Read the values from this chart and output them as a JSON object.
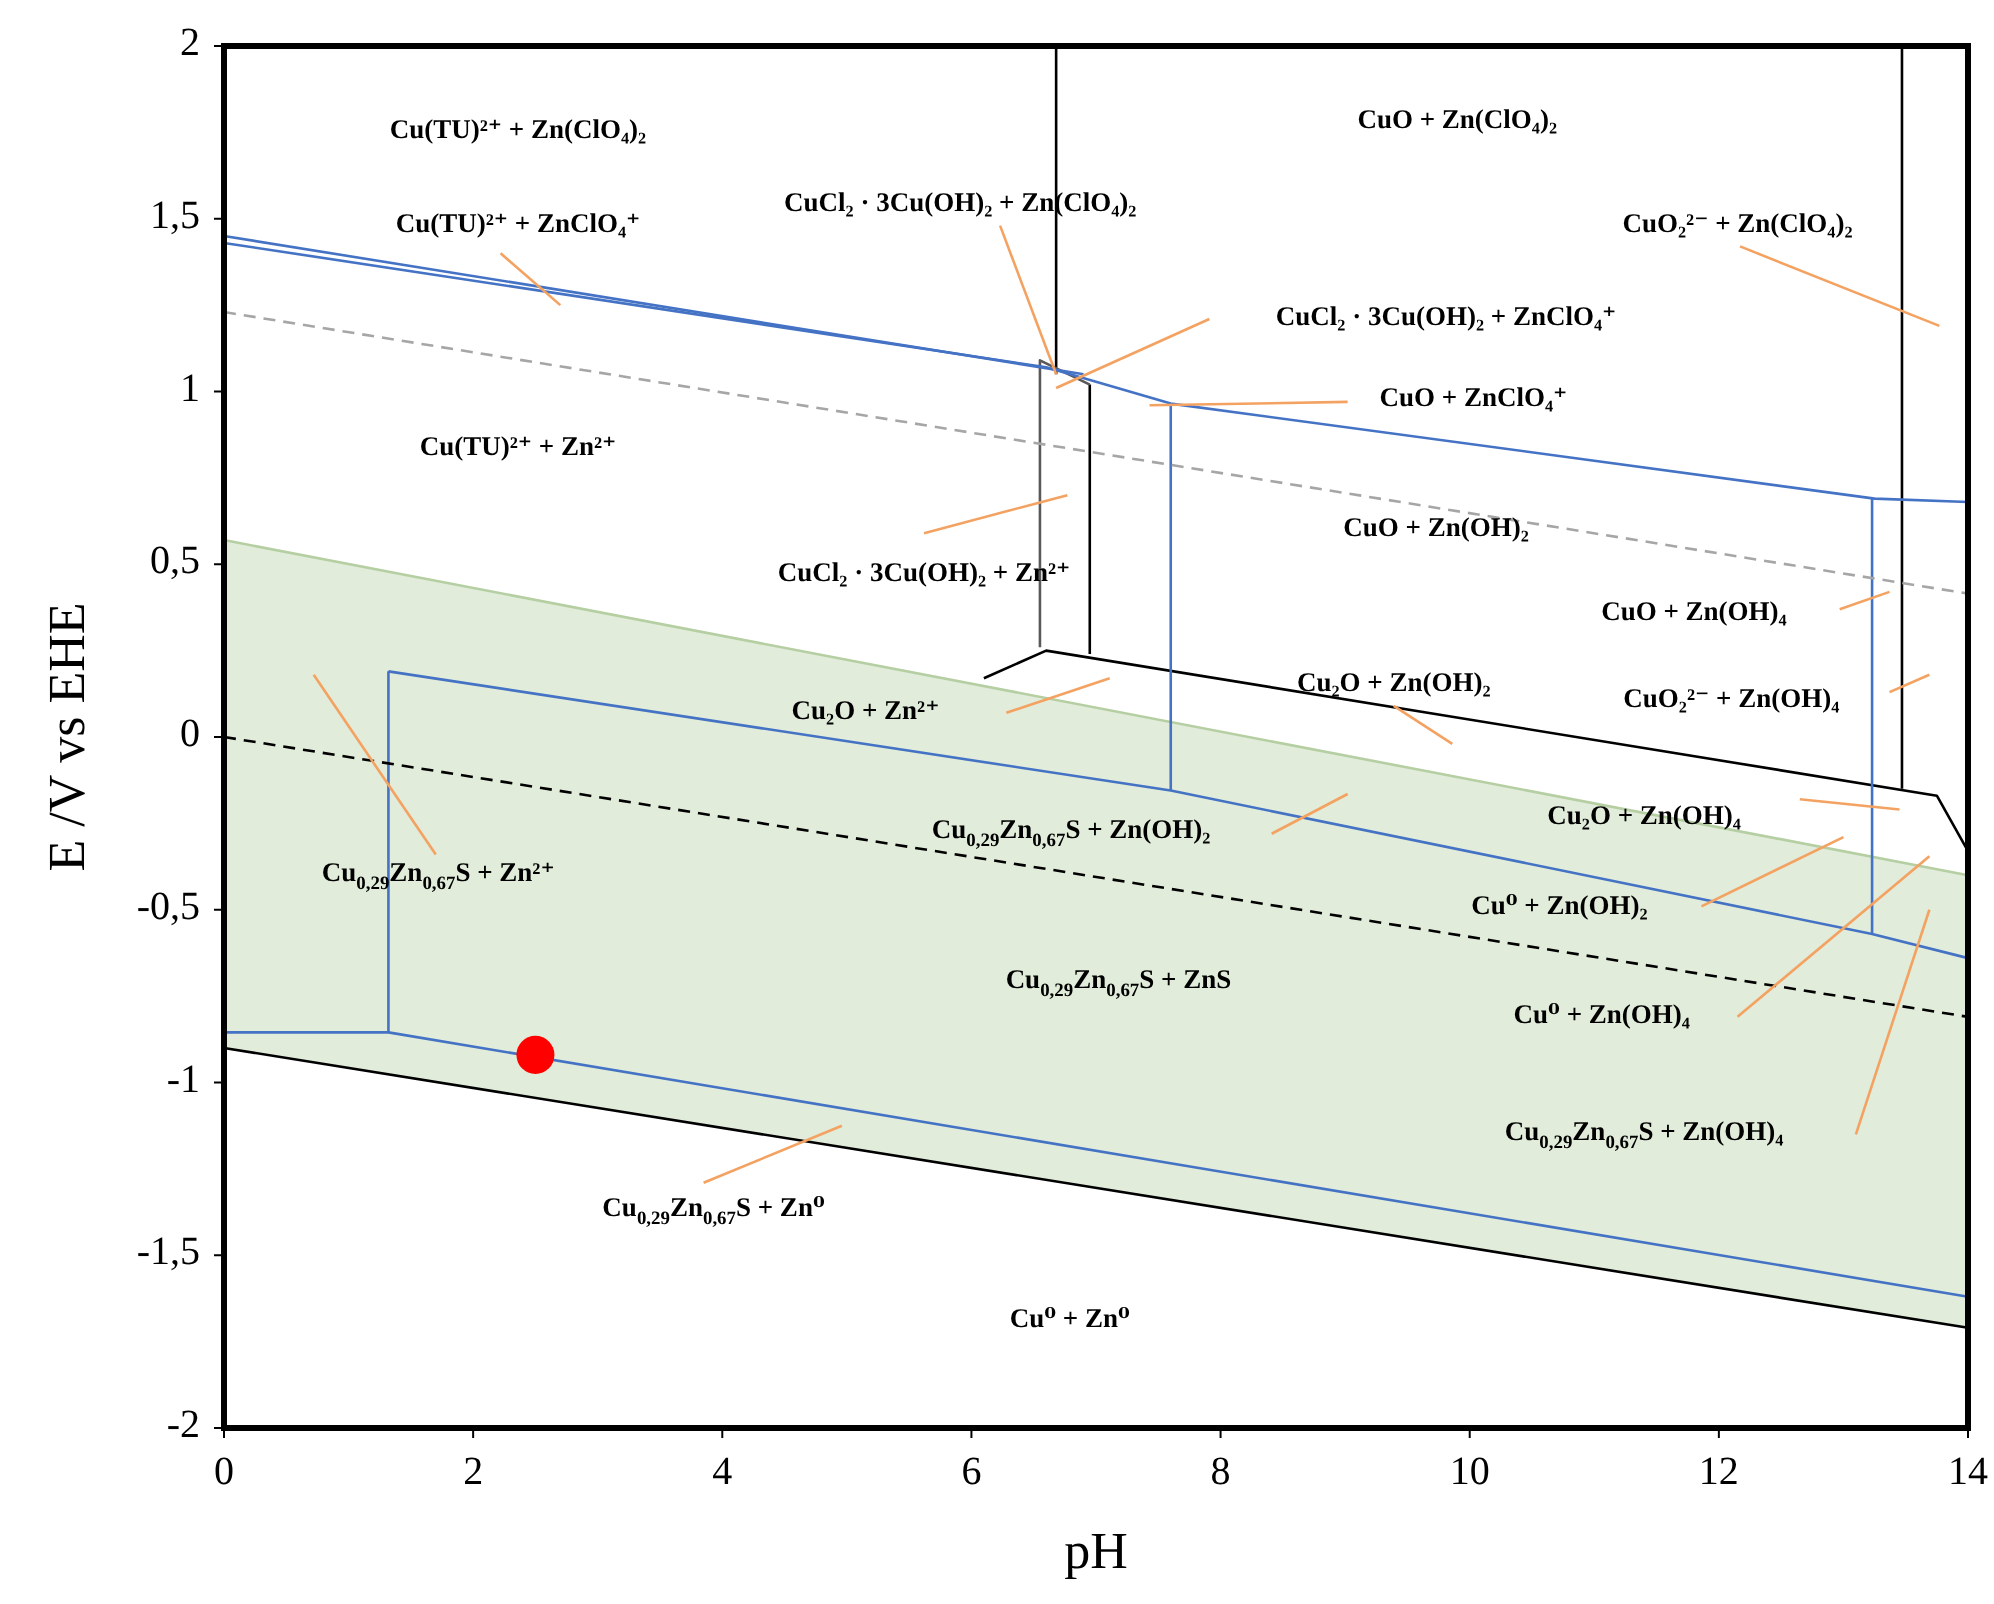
{
  "chart_data": {
    "type": "line",
    "xlabel": "pH",
    "ylabel": "E /V vs EHE",
    "xlim": [
      0,
      14
    ],
    "ylim": [
      -2,
      2
    ],
    "xticks": [
      0,
      2,
      4,
      6,
      8,
      10,
      12,
      14
    ],
    "yticks": [
      -2,
      {
        "value": -1.5,
        "label": "-1,5"
      },
      -1,
      {
        "value": -0.5,
        "label": "-0,5"
      },
      0,
      {
        "value": 0.5,
        "label": "0,5"
      },
      1,
      {
        "value": 1.5,
        "label": "1,5"
      },
      2
    ],
    "grid": false,
    "marker": "none",
    "line_style": "solid",
    "series": [
      {
        "color": "#b5cfa3",
        "x": [
          0,
          14
        ],
        "values": [
          0.57,
          -0.4
        ],
        "lower": [
          -0.9,
          -1.71
        ],
        "upper": [
          0.57,
          -0.4
        ]
      },
      {
        "color": "#000000",
        "x": [
          0,
          14
        ],
        "values": [
          -0.9,
          -1.71
        ]
      },
      {
        "color": "#000000",
        "x": [
          6.1,
          6.6,
          13.75,
          14
        ],
        "values": [
          0.17,
          0.25,
          -0.17,
          -0.33
        ]
      },
      {
        "color": "#000000",
        "x": [
          6.68,
          6.68
        ],
        "values": [
          2,
          1.05
        ]
      },
      {
        "color": "#000000",
        "x": [
          6.95,
          6.95
        ],
        "values": [
          1.02,
          0.24
        ]
      },
      {
        "color": "#595959",
        "x": [
          6.55,
          6.55,
          6.95
        ],
        "values": [
          0.26,
          1.09,
          1.02
        ]
      },
      {
        "color": "#000000",
        "x": [
          13.47,
          13.47
        ],
        "values": [
          2,
          -0.15
        ]
      },
      {
        "color": "#4472c4",
        "x": [
          0,
          6.6,
          7.6,
          13.25,
          14
        ],
        "values": [
          1.43,
          1.07,
          0.965,
          0.69,
          0.68
        ]
      },
      {
        "color": "#4472c4",
        "x": [
          0,
          6.9
        ],
        "values": [
          1.45,
          1.05
        ]
      },
      {
        "color": "#4472c4",
        "x": [
          7.6,
          7.6
        ],
        "values": [
          0.965,
          -0.155
        ]
      },
      {
        "color": "#4472c4",
        "x": [
          13.23,
          13.23
        ],
        "values": [
          0.69,
          -0.57
        ]
      },
      {
        "color": "#4472c4",
        "x": [
          1.32,
          7.6,
          13.23,
          14
        ],
        "values": [
          0.19,
          -0.155,
          -0.57,
          -0.64
        ]
      },
      {
        "color": "#4472c4",
        "x": [
          1.32,
          1.32
        ],
        "values": [
          0.19,
          -0.855
        ]
      },
      {
        "color": "#4472c4",
        "x": [
          0,
          1.32,
          14
        ],
        "values": [
          -0.855,
          -0.855,
          -1.62
        ]
      },
      {
        "color": "#a6a6a6",
        "line_style": "dashed",
        "x": [
          0,
          14
        ],
        "values": [
          1.23,
          0.415
        ]
      },
      {
        "color": "#000000",
        "line_style": "dashed",
        "x": [
          0,
          14
        ],
        "values": [
          0,
          -0.81
        ]
      },
      {
        "color": "#f4a261",
        "x": [
          2.22,
          2.7
        ],
        "values": [
          1.4,
          1.25
        ]
      },
      {
        "color": "#f4a261",
        "x": [
          6.23,
          6.68
        ],
        "values": [
          1.48,
          1.05
        ]
      },
      {
        "color": "#f4a261",
        "x": [
          7.91,
          6.68
        ],
        "values": [
          1.21,
          1.01
        ]
      },
      {
        "color": "#f4a261",
        "x": [
          9.02,
          7.43
        ],
        "values": [
          0.97,
          0.96
        ]
      },
      {
        "color": "#f4a261",
        "x": [
          13.77,
          12.17
        ],
        "values": [
          1.19,
          1.42
        ]
      },
      {
        "color": "#f4a261",
        "x": [
          6.77,
          5.62
        ],
        "values": [
          0.7,
          0.59
        ]
      },
      {
        "color": "#f4a261",
        "x": [
          13.37,
          12.97
        ],
        "values": [
          0.42,
          0.37
        ]
      },
      {
        "color": "#f4a261",
        "x": [
          7.11,
          6.28
        ],
        "values": [
          0.17,
          0.07
        ]
      },
      {
        "color": "#f4a261",
        "x": [
          9.39,
          9.86
        ],
        "values": [
          0.09,
          -0.02
        ]
      },
      {
        "color": "#f4a261",
        "x": [
          13.69,
          13.37
        ],
        "values": [
          0.18,
          0.13
        ]
      },
      {
        "color": "#f4a261",
        "x": [
          9.02,
          8.41
        ],
        "values": [
          -0.165,
          -0.28
        ]
      },
      {
        "color": "#f4a261",
        "x": [
          12.65,
          13.45
        ],
        "values": [
          -0.18,
          -0.21
        ]
      },
      {
        "color": "#f4a261",
        "x": [
          13.0,
          11.86
        ],
        "values": [
          -0.29,
          -0.49
        ]
      },
      {
        "color": "#f4a261",
        "x": [
          13.69,
          12.15
        ],
        "values": [
          -0.345,
          -0.81
        ]
      },
      {
        "color": "#f4a261",
        "x": [
          13.69,
          13.1
        ],
        "values": [
          -0.5,
          -1.15
        ]
      },
      {
        "color": "#f4a261",
        "x": [
          0.72,
          1.7
        ],
        "values": [
          0.18,
          -0.34
        ]
      },
      {
        "color": "#f4a261",
        "x": [
          4.96,
          3.85
        ],
        "values": [
          -1.125,
          -1.29
        ]
      },
      {
        "type": "scatter",
        "marker": "circle",
        "color": "#ff0000",
        "x": [
          2.5
        ],
        "values": [
          -0.92
        ]
      }
    ],
    "annotations": [
      "Cu(TU)²⁺ + Zn(ClO₄)₂",
      "Cu(TU)²⁺ + ZnClO₄⁺",
      "CuCl₂ · 3Cu(OH)₂ + Zn(ClO₄)₂",
      "CuO + Zn(ClO₄)₂",
      "CuO₂²⁻ + Zn(ClO₄)₂",
      "CuCl₂ · 3Cu(OH)₂ + ZnClO₄⁺",
      "CuO + ZnClO₄⁺",
      "Cu(TU)²⁺ + Zn²⁺",
      "CuO + Zn(OH)₂",
      "CuCl₂ · 3Cu(OH)₂ + Zn²⁺",
      "CuO + Zn(OH)₄",
      "Cu₂O + Zn²⁺",
      "Cu₂O + Zn(OH)₂",
      "CuO₂²⁻ + Zn(OH)₄",
      "Cu$_{0,29}$Zn$_{0,67}$S + Zn(OH)₂",
      "Cu₂O + Zn(OH)₄",
      "Cu$_{0,29}$Zn$_{0,67}$S + Zn²⁺",
      "Cu⁰ + Zn(OH)₂",
      "Cu$_{0,29}$Zn$_{0,67}$S + ZnS",
      "Cu⁰ + Zn(OH)₄",
      "Cu$_{0,29}$Zn$_{0,67}$S + Zn(OH)₄",
      "Cu$_{0,29}$Zn$_{0,67}$S + Zn⁰",
      "Cu⁰ + Zn⁰"
    ]
  }
}
